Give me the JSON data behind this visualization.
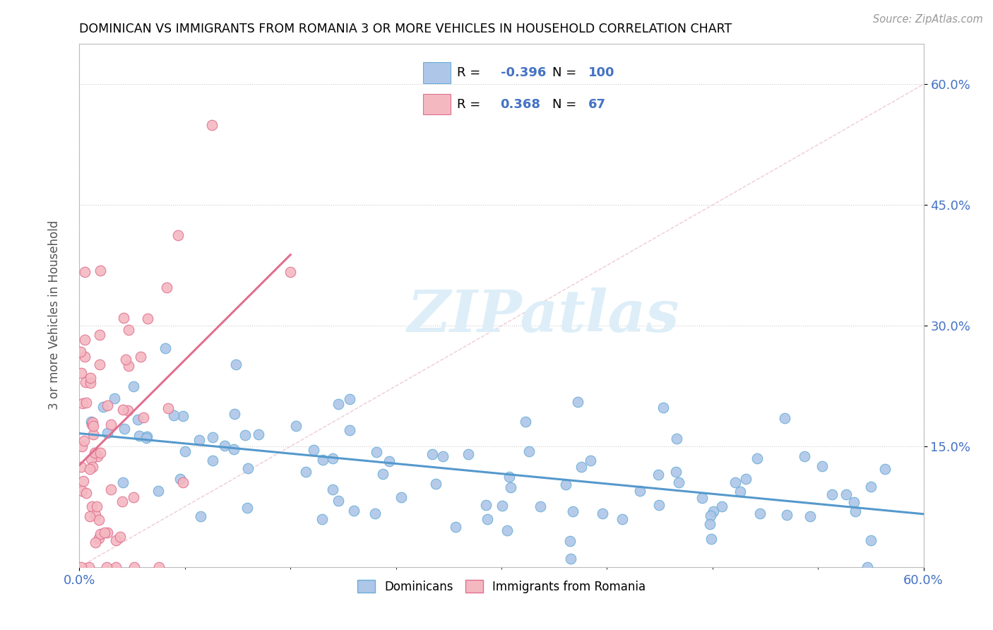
{
  "title": "DOMINICAN VS IMMIGRANTS FROM ROMANIA 3 OR MORE VEHICLES IN HOUSEHOLD CORRELATION CHART",
  "source": "Source: ZipAtlas.com",
  "ylabel": "3 or more Vehicles in Household",
  "xlim": [
    0.0,
    0.6
  ],
  "ylim": [
    0.0,
    0.65
  ],
  "xtick_labels": [
    "0.0%",
    "60.0%"
  ],
  "ytick_labels": [
    "15.0%",
    "30.0%",
    "45.0%",
    "60.0%"
  ],
  "ytick_vals": [
    0.15,
    0.3,
    0.45,
    0.6
  ],
  "r_blue": -0.396,
  "n_blue": 100,
  "r_pink": 0.368,
  "n_pink": 67,
  "blue_color": "#aec6e8",
  "blue_edge": "#6aaed6",
  "pink_color": "#f4b8c1",
  "pink_edge": "#e07090",
  "trend_blue": "#5599cc",
  "trend_pink": "#e07090",
  "ref_line_color": "#e8b4c0",
  "watermark": "ZIPatlas",
  "watermark_color": "#ddeef8",
  "legend_blue_label": "Dominicans",
  "legend_pink_label": "Immigrants from Romania"
}
